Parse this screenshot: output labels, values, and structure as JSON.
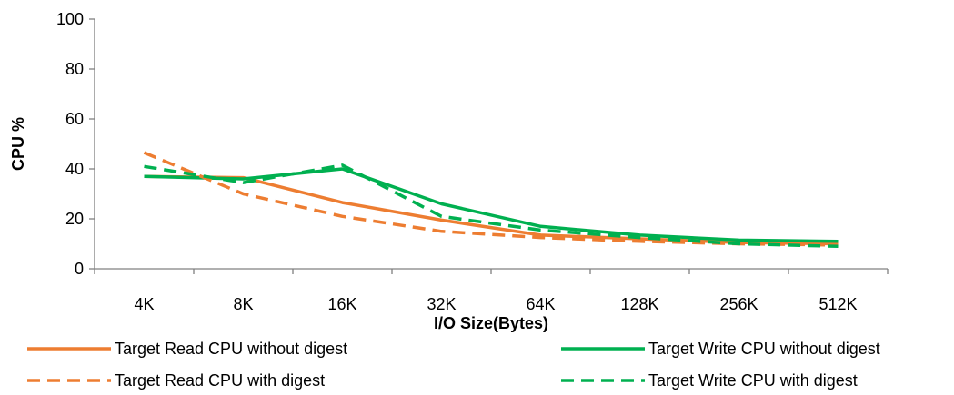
{
  "chart_data": {
    "type": "line",
    "categories": [
      "4K",
      "8K",
      "16K",
      "32K",
      "64K",
      "128K",
      "256K",
      "512K"
    ],
    "xlabel": "I/O Size(Bytes)",
    "ylabel": "CPU %",
    "ylim": [
      0,
      100
    ],
    "yticks": [
      0,
      20,
      40,
      60,
      80,
      100
    ],
    "grid": false,
    "legend_position": "bottom",
    "series": [
      {
        "name": "Target Read CPU without digest",
        "color": "#ED7D31",
        "dash": "solid",
        "values": [
          37,
          36.5,
          26.5,
          19.5,
          13.5,
          12,
          10.5,
          10
        ]
      },
      {
        "name": "Target Write CPU without digest",
        "color": "#00B050",
        "dash": "solid",
        "values": [
          37,
          36,
          40,
          26,
          17,
          13.5,
          11.5,
          11
        ]
      },
      {
        "name": "Target Read CPU with digest",
        "color": "#ED7D31",
        "dash": "dashed",
        "values": [
          46.5,
          30,
          21,
          15,
          12.5,
          11,
          10,
          9.5
        ]
      },
      {
        "name": "Target Write CPU with digest",
        "color": "#00B050",
        "dash": "dashed",
        "values": [
          41,
          34.5,
          41.5,
          21,
          15.5,
          12.5,
          10,
          9
        ]
      }
    ]
  }
}
